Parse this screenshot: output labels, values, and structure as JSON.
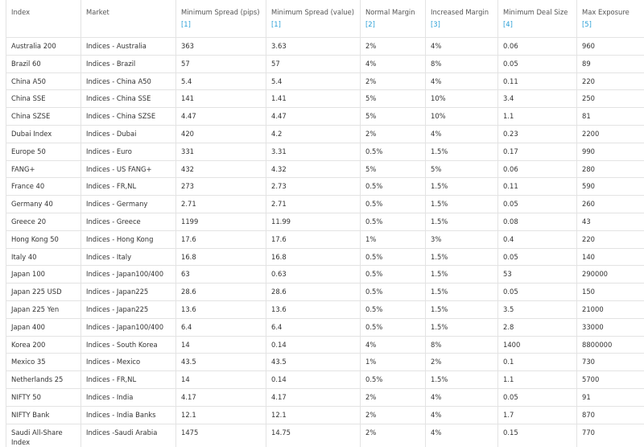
{
  "table": {
    "headers": [
      {
        "label": "Index"
      },
      {
        "label": "Market"
      },
      {
        "label": "Minimum Spread (pips)",
        "ref": "[1]"
      },
      {
        "label": "Minimum Spread (value)",
        "ref": "[1]"
      },
      {
        "label": "Normal Margin",
        "ref": "[2]"
      },
      {
        "label": "Increased Margin",
        "ref": "[3]"
      },
      {
        "label": "Minimum Deal Size",
        "ref": "[4]"
      },
      {
        "label": "Max Exposure",
        "ref": "[5]"
      }
    ],
    "rows": [
      [
        "Australia 200",
        "Indices - Australia",
        "363",
        "3.63",
        "2%",
        "4%",
        "0.06",
        "960"
      ],
      [
        "Brazil 60",
        "Indices - Brazil",
        "57",
        "57",
        "4%",
        "8%",
        "0.05",
        "89"
      ],
      [
        "China A50",
        "Indices - China A50",
        "5.4",
        "5.4",
        "2%",
        "4%",
        "0.11",
        "220"
      ],
      [
        "China SSE",
        "Indices - China SSE",
        "141",
        "1.41",
        "5%",
        "10%",
        "3.4",
        "250"
      ],
      [
        "China SZSE",
        "Indices - China SZSE",
        "4.47",
        "4.47",
        "5%",
        "10%",
        "1.1",
        "81"
      ],
      [
        "Dubai Index",
        "Indices - Dubai",
        "420",
        "4.2",
        "2%",
        "4%",
        "0.23",
        "2200"
      ],
      [
        "Europe 50",
        "Indices - Euro",
        "331",
        "3.31",
        "0.5%",
        "1.5%",
        "0.17",
        "990"
      ],
      [
        "FANG+",
        "Indices - US FANG+",
        "432",
        "4.32",
        "5%",
        "5%",
        "0.06",
        "280"
      ],
      [
        "France 40",
        "Indices - FR,NL",
        "273",
        "2.73",
        "0.5%",
        "1.5%",
        "0.11",
        "590"
      ],
      [
        "Germany 40",
        "Indices - Germany",
        "2.71",
        "2.71",
        "0.5%",
        "1.5%",
        "0.05",
        "260"
      ],
      [
        "Greece 20",
        "Indices - Greece",
        "1199",
        "11.99",
        "0.5%",
        "1.5%",
        "0.08",
        "43"
      ],
      [
        "Hong Kong 50",
        "Indices - Hong Kong",
        "17.6",
        "17.6",
        "1%",
        "3%",
        "0.4",
        "220"
      ],
      [
        "Italy 40",
        "Indices - Italy",
        "16.8",
        "16.8",
        "0.5%",
        "1.5%",
        "0.05",
        "140"
      ],
      [
        "Japan 100",
        "Indices - Japan100/400",
        "63",
        "0.63",
        "0.5%",
        "1.5%",
        "53",
        "290000"
      ],
      [
        "Japan 225 USD",
        "Indices - Japan225",
        "28.6",
        "28.6",
        "0.5%",
        "1.5%",
        "0.05",
        "150"
      ],
      [
        "Japan 225 Yen",
        "Indices - Japan225",
        "13.6",
        "13.6",
        "0.5%",
        "1.5%",
        "3.5",
        "21000"
      ],
      [
        "Japan 400",
        "Indices - Japan100/400",
        "6.4",
        "6.4",
        "0.5%",
        "1.5%",
        "2.8",
        "33000"
      ],
      [
        "Korea 200",
        "Indices - South Korea",
        "14",
        "0.14",
        "4%",
        "8%",
        "1400",
        "8800000"
      ],
      [
        "Mexico 35",
        "Indices - Mexico",
        "43.5",
        "43.5",
        "1%",
        "2%",
        "0.1",
        "730"
      ],
      [
        "Netherlands 25",
        "Indices - FR,NL",
        "14",
        "0.14",
        "0.5%",
        "1.5%",
        "1.1",
        "5700"
      ],
      [
        "NIFTY 50",
        "Indices - India",
        "4.17",
        "4.17",
        "2%",
        "4%",
        "0.05",
        "91"
      ],
      [
        "NIFTY Bank",
        "Indices - India Banks",
        "12.1",
        "12.1",
        "2%",
        "4%",
        "1.7",
        "870"
      ],
      [
        "Saudi All-Share Index",
        "Indices -Saudi Arabia",
        "1475",
        "14.75",
        "2%",
        "4%",
        "0.15",
        "770"
      ]
    ]
  }
}
